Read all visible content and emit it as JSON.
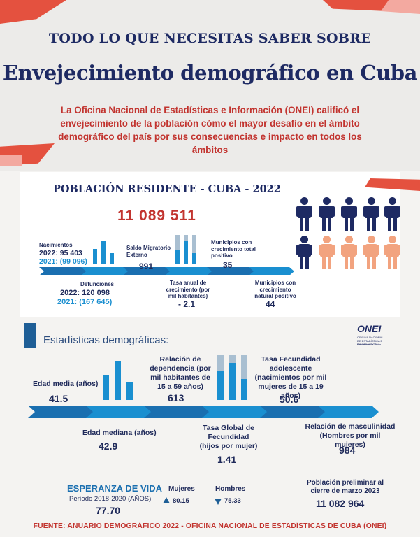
{
  "header": {
    "kicker": "TODO LO QUE NECESITAS SABER SOBRE",
    "title": "Envejecimiento demográfico en Cuba",
    "intro": "La Oficina Nacional de Estadísticas e Información (ONEI) calificó el envejecimiento de la población cómo el mayor desafío en el ámbito demográfico del país por sus consecuencias e impacto en todos los ámbitos"
  },
  "population": {
    "title": "POBLACIÓN RESIDENTE - CUBA - 2022",
    "total": "11 089 511",
    "nacimientos_label": "Nacimientos",
    "nacimientos_2022": "2022: 95 403",
    "nacimientos_2021": "2021: (99 096)",
    "defunciones_label": "Defunciones",
    "defunciones_2022": "2022: 120 098",
    "defunciones_2021": "2021: (167 645)",
    "saldo_label": "Saldo Migratorio Externo",
    "saldo_value": "991",
    "tasa_label": "Tasa anual de crecimiento (por mil habitantes)",
    "tasa_value": "- 2.1",
    "mun_total_label": "Municipios con crecimiento total positivo",
    "mun_total_value": "35",
    "mun_natural_label": "Municipios con crecimiento natural positivo",
    "mun_natural_value": "44"
  },
  "stats": {
    "title": "Estadísticas demográficas:",
    "logo_name": "ONEI",
    "logo_sub1": "OFICINA NACIONAL",
    "logo_sub2": "DE ESTADÍSTICA E INFORMACIÓN",
    "logo_sub3": "República de Cuba",
    "edad_media_label": "Edad media (años)",
    "edad_media_value": "41.5",
    "edad_mediana_label": "Edad mediana (años)",
    "edad_mediana_value": "42.9",
    "dependencia_label": "Relación de dependencia (por mil habitantes de 15 a 59 años)",
    "dependencia_value": "613",
    "fecundidad_global_label": "Tasa Global de Fecundidad (hijos por mujer)",
    "fecundidad_global_value": "1.41",
    "fecundidad_adol_label": "Tasa Fecundidad adolescente (nacimientos por mil mujeres de 15 a 19 años)",
    "fecundidad_adol_value": "50.6",
    "masculinidad_label": "Relación de masculinidad (Hombres por mil mujeres)",
    "masculinidad_value": "984"
  },
  "life": {
    "title": "ESPERANZA DE VIDA",
    "period": "Período 2018-2020 (AÑOS)",
    "value": "77.70",
    "mujeres_label": "Mujeres",
    "mujeres_value": "80.15",
    "hombres_label": "Hombres",
    "hombres_value": "75.33",
    "prelim_label": "Población preliminar al cierre de marzo 2023",
    "prelim_value": "11 082 964"
  },
  "footer": "FUENTE: ANUARIO DEMOGRÁFICO 2022 - OFICINA NACIONAL DE ESTADÍSTICAS DE CUBA (ONEI)",
  "colors": {
    "navy": "#1e2a63",
    "red": "#c2342f",
    "blue": "#1a8fd0",
    "peach": "#f2a37f"
  }
}
